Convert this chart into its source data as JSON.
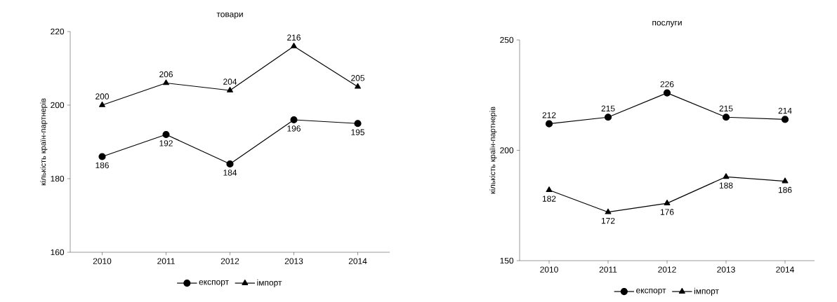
{
  "chart_data": [
    {
      "type": "line",
      "title": "товари",
      "ylabel": "кількість країн-партнерів",
      "categories": [
        "2010",
        "2011",
        "2012",
        "2013",
        "2014"
      ],
      "ylim": [
        160,
        220
      ],
      "yticks": [
        160,
        180,
        200,
        220
      ],
      "data_labels": true,
      "legend": "bottom",
      "grid": false,
      "series": [
        {
          "name": "експорт",
          "color": "#000000",
          "marker": "circle",
          "values": [
            186,
            192,
            184,
            196,
            195
          ]
        },
        {
          "name": "імпорт",
          "color": "#000000",
          "marker": "triangle",
          "values": [
            200,
            206,
            204,
            216,
            205
          ]
        }
      ]
    },
    {
      "type": "line",
      "title": "послуги",
      "ylabel": "кількість країн-партнерів",
      "categories": [
        "2010",
        "2011",
        "2012",
        "2013",
        "2014"
      ],
      "ylim": [
        150,
        250
      ],
      "yticks": [
        150,
        200,
        250
      ],
      "data_labels": true,
      "legend": "bottom",
      "grid": false,
      "series": [
        {
          "name": "експорт",
          "color": "#000000",
          "marker": "circle",
          "values": [
            212,
            215,
            226,
            215,
            214
          ]
        },
        {
          "name": "імпорт",
          "color": "#000000",
          "marker": "triangle",
          "values": [
            182,
            172,
            176,
            188,
            186
          ]
        }
      ]
    }
  ]
}
